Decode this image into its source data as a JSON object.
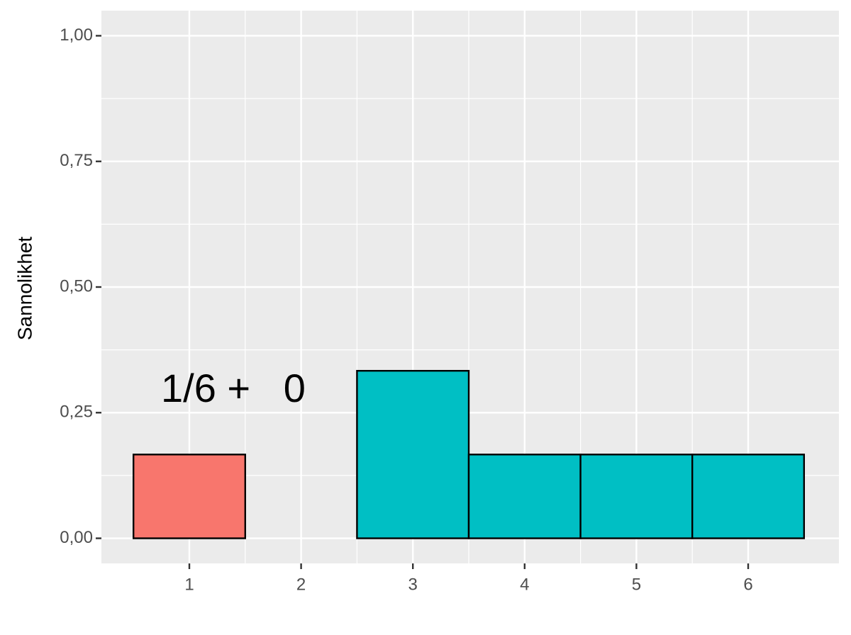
{
  "chart_data": {
    "type": "bar",
    "categories": [
      "1",
      "2",
      "3",
      "4",
      "5",
      "6"
    ],
    "values": [
      0.1667,
      0,
      0.3333,
      0.1667,
      0.1667,
      0.1667
    ],
    "colors": [
      "#F8766D",
      "#00BFC4",
      "#00BFC4",
      "#00BFC4",
      "#00BFC4",
      "#00BFC4"
    ],
    "ylabel": "Sannolikhet",
    "annotation": "1/6 +   0",
    "ylim": [
      -0.05,
      1.05
    ],
    "yticks": [
      {
        "value": 0,
        "label": "0,00"
      },
      {
        "value": 0.25,
        "label": "0,25"
      },
      {
        "value": 0.5,
        "label": "0,50"
      },
      {
        "value": 0.75,
        "label": "0,75"
      },
      {
        "value": 1,
        "label": "1,00"
      }
    ],
    "grid": true
  }
}
